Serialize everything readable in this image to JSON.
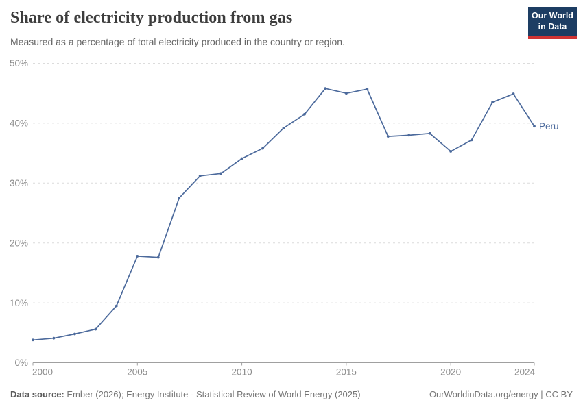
{
  "header": {
    "title": "Share of electricity production from gas",
    "subtitle": "Measured as a percentage of total electricity produced in the country or region."
  },
  "logo": {
    "line1": "Our World",
    "line2": "in Data"
  },
  "chart_data": {
    "type": "line",
    "title": "Share of electricity production from gas",
    "entity_label": "Peru",
    "x": [
      2000,
      2001,
      2002,
      2003,
      2004,
      2005,
      2006,
      2007,
      2008,
      2009,
      2010,
      2011,
      2012,
      2013,
      2014,
      2015,
      2016,
      2017,
      2018,
      2019,
      2020,
      2021,
      2022,
      2023,
      2024
    ],
    "series": [
      {
        "name": "Peru",
        "color": "#4c6a9c",
        "values": [
          3.8,
          4.1,
          4.8,
          5.6,
          9.5,
          17.8,
          17.6,
          27.5,
          31.2,
          31.6,
          34.1,
          35.8,
          39.2,
          41.5,
          45.8,
          45.0,
          45.7,
          37.8,
          38.0,
          38.3,
          35.3,
          37.2,
          43.5,
          44.9,
          39.5
        ]
      }
    ],
    "xlim": [
      2000,
      2024
    ],
    "ylim": [
      0,
      50
    ],
    "yticks": [
      0,
      10,
      20,
      30,
      40,
      50
    ],
    "ytick_suffix": "%",
    "xticks": [
      2000,
      2005,
      2010,
      2015,
      2020,
      2024
    ],
    "grid": "horizontal-dashed",
    "legend_position": "end-of-line"
  },
  "footer": {
    "source_bold": "Data source:",
    "source_rest": " Ember (2026); Energy Institute - Statistical Review of World Energy (2025)",
    "credit": "OurWorldinData.org/energy | CC BY"
  },
  "colors": {
    "line": "#4c6a9c",
    "grid": "#dcdcdc",
    "axis": "#a0a0a0",
    "tick_label": "#8c8c8c",
    "title": "#3d3d3d",
    "subtitle": "#666666",
    "logo_bg": "#1d3d63",
    "logo_accent": "#d13434"
  }
}
